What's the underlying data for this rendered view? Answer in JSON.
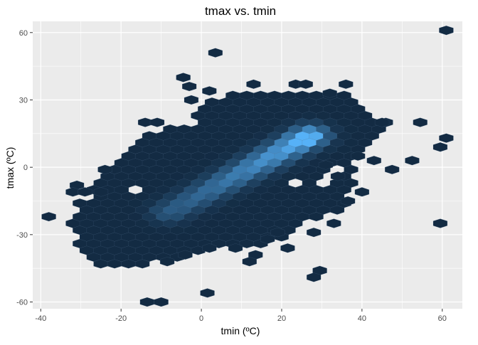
{
  "chart_data": {
    "type": "hexbin",
    "title": "tmax vs. tmin",
    "xlabel": "tmin (ºC)",
    "ylabel": "tmax (ºC)",
    "xlim": [
      -42,
      65
    ],
    "ylim": [
      -63,
      65
    ],
    "xticks": [
      -40,
      -20,
      0,
      20,
      40,
      60
    ],
    "yticks": [
      -60,
      -30,
      0,
      30,
      60
    ],
    "grid": true,
    "background": "#EBEBEB",
    "grid_color": "#FFFFFF",
    "low_color": "#132B43",
    "high_color": "#56B1F7",
    "hex_radius": 2.0,
    "isolated_bins": [
      {
        "x": 61,
        "y": 61,
        "n": 1
      },
      {
        "x": 3.5,
        "y": 51,
        "n": 1
      },
      {
        "x": -4.5,
        "y": 40,
        "n": 1
      },
      {
        "x": -3,
        "y": 36,
        "n": 1
      },
      {
        "x": -2.5,
        "y": 30,
        "n": 1
      },
      {
        "x": 2,
        "y": 34,
        "n": 1
      },
      {
        "x": 23.5,
        "y": 37,
        "n": 1
      },
      {
        "x": 26,
        "y": 37,
        "n": 1
      },
      {
        "x": 13,
        "y": 37,
        "n": 1
      },
      {
        "x": 32,
        "y": 33,
        "n": 1
      },
      {
        "x": 36,
        "y": 37,
        "n": 1
      },
      {
        "x": -14,
        "y": 20,
        "n": 1
      },
      {
        "x": -11,
        "y": 20,
        "n": 1
      },
      {
        "x": -38,
        "y": -22,
        "n": 1
      },
      {
        "x": -31,
        "y": -8,
        "n": 1
      },
      {
        "x": -32,
        "y": -11,
        "n": 1
      },
      {
        "x": -29,
        "y": -11,
        "n": 1
      },
      {
        "x": -25,
        "y": -11,
        "n": 1
      },
      {
        "x": -24,
        "y": -1,
        "n": 1
      },
      {
        "x": 43,
        "y": 3,
        "n": 1
      },
      {
        "x": 47.5,
        "y": -1,
        "n": 1
      },
      {
        "x": 52.5,
        "y": 3,
        "n": 1
      },
      {
        "x": 54.5,
        "y": 20,
        "n": 1
      },
      {
        "x": 59.5,
        "y": 9,
        "n": 1
      },
      {
        "x": 61,
        "y": 13,
        "n": 1
      },
      {
        "x": 59.5,
        "y": -25,
        "n": 1
      },
      {
        "x": 28,
        "y": -29,
        "n": 1
      },
      {
        "x": 33,
        "y": -25,
        "n": 1
      },
      {
        "x": 21.5,
        "y": -36,
        "n": 1
      },
      {
        "x": 13.5,
        "y": -39,
        "n": 1
      },
      {
        "x": 12,
        "y": -42,
        "n": 1
      },
      {
        "x": 29.5,
        "y": -46,
        "n": 1
      },
      {
        "x": 28,
        "y": -49,
        "n": 1
      },
      {
        "x": 1.5,
        "y": -56,
        "n": 1
      },
      {
        "x": -13.5,
        "y": -60,
        "n": 1
      },
      {
        "x": -10,
        "y": -60,
        "n": 1
      },
      {
        "x": -8.5,
        "y": -42,
        "n": 1
      },
      {
        "x": -4,
        "y": -39,
        "n": 1
      },
      {
        "x": 2,
        "y": -36,
        "n": 1
      },
      {
        "x": 8.5,
        "y": -36,
        "n": 1
      },
      {
        "x": 19,
        "y": -29,
        "n": 1
      },
      {
        "x": 16.5,
        "y": -32,
        "n": 1
      },
      {
        "x": 36.5,
        "y": -15,
        "n": 1
      },
      {
        "x": 40,
        "y": -11,
        "n": 1
      },
      {
        "x": 39,
        "y": 5,
        "n": 1
      },
      {
        "x": 31,
        "y": 1,
        "n": 1
      },
      {
        "x": 34,
        "y": -4,
        "n": 1
      },
      {
        "x": 45,
        "y": 20,
        "n": 1
      }
    ],
    "density_region": {
      "xrange": [
        -32,
        48
      ],
      "yrange": [
        -43,
        35
      ],
      "outline": [
        [
          -31,
          -18
        ],
        [
          -33,
          -28
        ],
        [
          -30,
          -35
        ],
        [
          -28,
          -43
        ],
        [
          -20,
          -43
        ],
        [
          -12,
          -43
        ],
        [
          -6,
          -40
        ],
        [
          2,
          -36
        ],
        [
          8,
          -36
        ],
        [
          14,
          -36
        ],
        [
          20,
          -32
        ],
        [
          25,
          -26
        ],
        [
          30,
          -23
        ],
        [
          36,
          -18
        ],
        [
          38,
          -10
        ],
        [
          38,
          2
        ],
        [
          40,
          8
        ],
        [
          43,
          14
        ],
        [
          46,
          20
        ],
        [
          42,
          26
        ],
        [
          38,
          32
        ],
        [
          30,
          33
        ],
        [
          20,
          35
        ],
        [
          12,
          35
        ],
        [
          5,
          32
        ],
        [
          0,
          30
        ],
        [
          -2,
          20
        ],
        [
          -9,
          18
        ],
        [
          -15,
          14
        ],
        [
          -20,
          6
        ],
        [
          -24,
          0
        ],
        [
          -27,
          -6
        ],
        [
          -30,
          -12
        ]
      ],
      "ridge": {
        "from": [
          -8,
          -20
        ],
        "to": [
          27,
          14
        ],
        "peak": [
          25,
          12
        ],
        "peak_n": 30
      },
      "holes": [
        [
          -16,
          -11
        ],
        [
          -28,
          -14
        ],
        [
          31,
          -5
        ],
        [
          34,
          -2
        ],
        [
          23,
          -8
        ]
      ]
    }
  }
}
